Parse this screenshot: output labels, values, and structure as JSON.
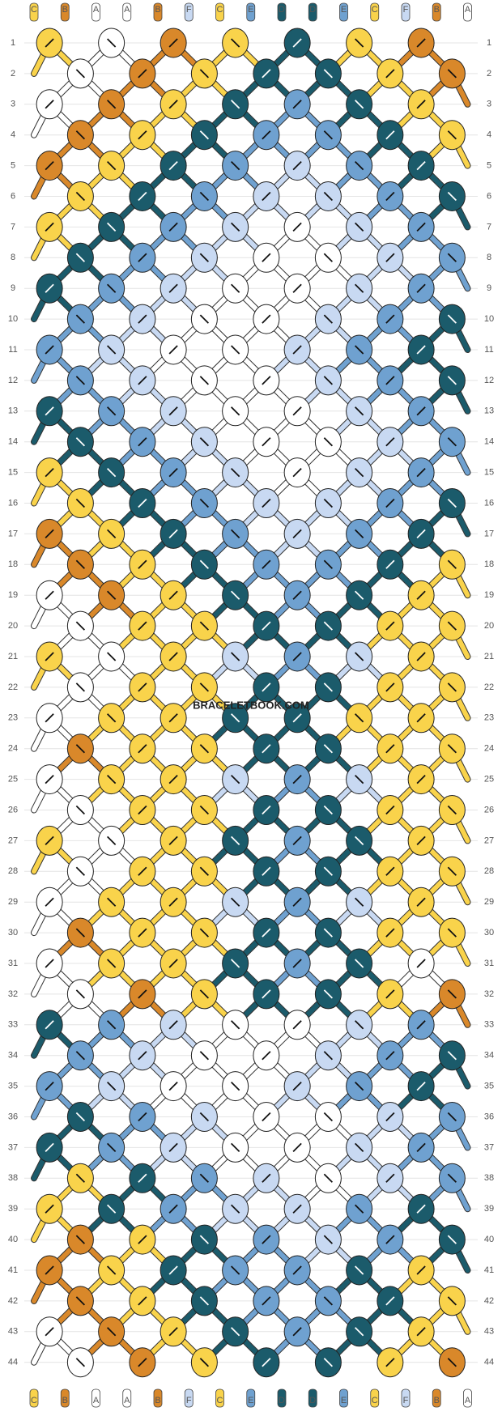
{
  "strands_top": [
    "C",
    "B",
    "A",
    "A",
    "B",
    "F",
    "C",
    "E",
    "D",
    "D",
    "E",
    "C",
    "F",
    "B",
    "A"
  ],
  "strands_bottom": [
    "C",
    "B",
    "A",
    "A",
    "B",
    "F",
    "C",
    "E",
    "D",
    "D",
    "E",
    "C",
    "F",
    "B",
    "A"
  ],
  "row_numbers": [
    1,
    2,
    3,
    4,
    5,
    6,
    7,
    8,
    9,
    10,
    11,
    12,
    13,
    14,
    15,
    16,
    17,
    18,
    19,
    20,
    21,
    22,
    23,
    24,
    25,
    26,
    27,
    28,
    29,
    30,
    31,
    32,
    33,
    34,
    35,
    36,
    37,
    38,
    39,
    40,
    41,
    42,
    43,
    44
  ],
  "colors": {
    "A": "#ffffff",
    "B": "#d9882a",
    "C": "#f9d34b",
    "D": "#1b5b6b",
    "E": "#6fa1d0",
    "F": "#c8d9f2"
  },
  "knots": [
    "CABCDCB",
    "ABCDDCB",
    "ABCDEDC",
    "BCDEEDC",
    "BCDEFED",
    "CDEFFED",
    "CDEFAFE",
    "DEFAAFE",
    "DEFAAFE",
    "EFAAFED",
    "EFAAFED",
    "EFAAFED",
    "DEFAAFE",
    "DEFAAFE",
    "CDEFAFE",
    "CDEFFED",
    "BCDEFED",
    "BCDEEDC",
    "ABCDEDC",
    "ACCDDCC",
    "CACFEFC",
    "ACCDDCC",
    "ACCDDCC",
    "BCCDDCC",
    "ACCFEFC",
    "ACCDDCC",
    "CACDEDC",
    "ACCDDCC",
    "ACCFEFC",
    "BCCDDCC",
    "ACCDEDA",
    "ABCDDCB",
    "DEFAAFE",
    "EFAAFED",
    "EFAAFED",
    "DEFAAFE",
    "DEFAAFE",
    "CDEFAFE",
    "CDEFFED",
    "BCDEFED",
    "BCDEEDC",
    "BCDEEDC",
    "ABCDEDC",
    "ABCDDCB"
  ],
  "watermark": "BRACELETBOOK.COM"
}
